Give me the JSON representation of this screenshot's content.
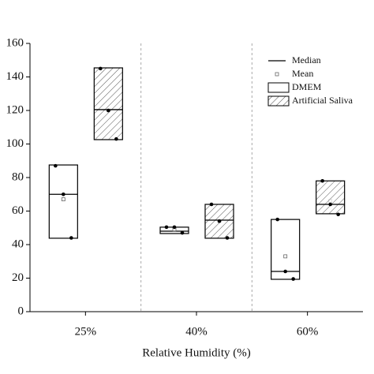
{
  "chart_data": {
    "type": "box",
    "categories": [
      "25%",
      "40%",
      "60%"
    ],
    "x_label": "Relative Humidity (%)",
    "median_label": "Median",
    "mean_label": "Mean",
    "ylim": [
      0,
      160
    ],
    "yticks": [
      0,
      20,
      40,
      60,
      80,
      100,
      120,
      140,
      160
    ],
    "series": [
      {
        "name": "DMEM",
        "hatch": false,
        "min": [
          43.8,
          46.6,
          19.3
        ],
        "max": [
          87.5,
          50.4,
          55
        ],
        "median": [
          70,
          48,
          24
        ],
        "mean": [
          67,
          49,
          33
        ],
        "points": [
          [
            87,
            70,
            44
          ],
          [
            50.4,
            50.4,
            47
          ],
          [
            55,
            24,
            19.5
          ]
        ]
      },
      {
        "name": "Artificial Saliva",
        "hatch": true,
        "min": [
          102.6,
          43.8,
          58.4
        ],
        "max": [
          145.4,
          64,
          78
        ],
        "median": [
          120.5,
          54.6,
          64
        ],
        "mean": [
          120,
          54,
          66
        ],
        "points": [
          [
            145,
            120,
            103
          ],
          [
            64,
            54,
            44
          ],
          [
            78,
            64,
            58
          ]
        ]
      }
    ]
  }
}
